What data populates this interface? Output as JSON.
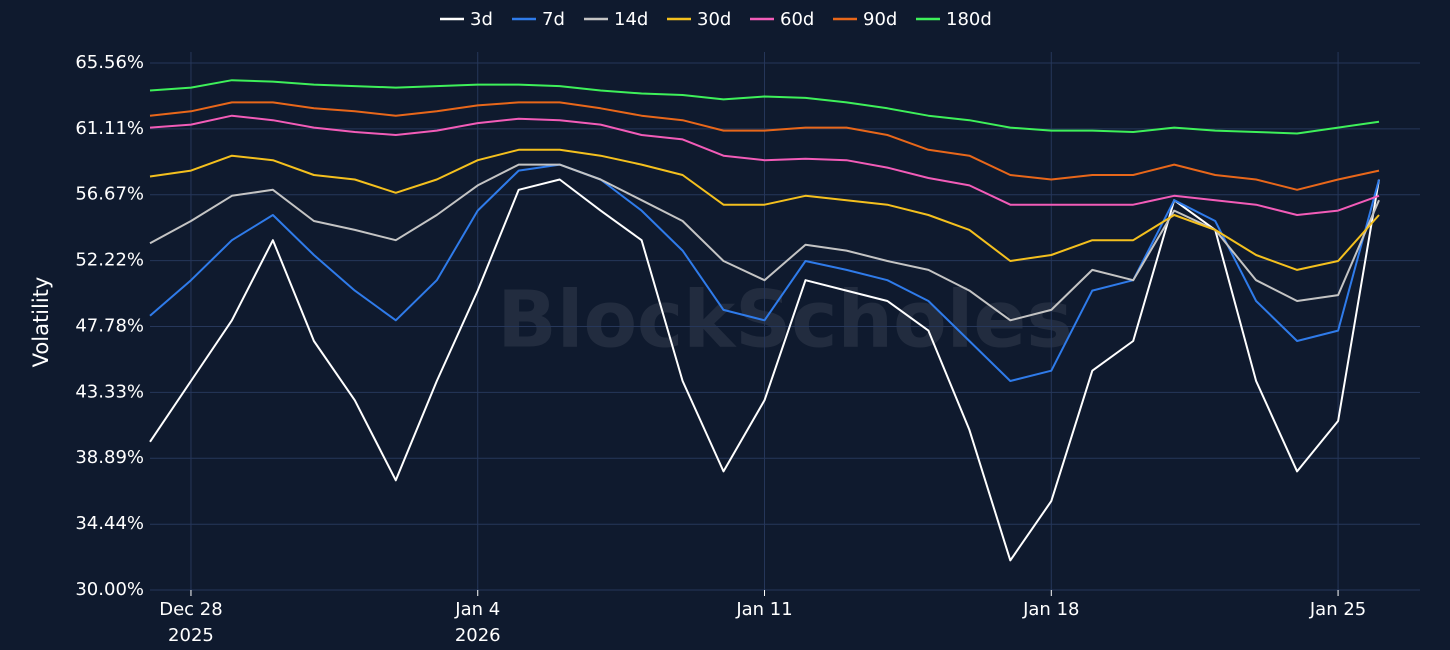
{
  "chart_data": {
    "type": "line",
    "y_label": "Volatility",
    "watermark": "BlockScholes",
    "legend": "top",
    "grid": true,
    "x": [
      "2025-12-27",
      "2025-12-28",
      "2025-12-29",
      "2025-12-30",
      "2025-12-31",
      "2026-01-01",
      "2026-01-02",
      "2026-01-03",
      "2026-01-04",
      "2026-01-05",
      "2026-01-06",
      "2026-01-07",
      "2026-01-08",
      "2026-01-09",
      "2026-01-10",
      "2026-01-11",
      "2026-01-12",
      "2026-01-13",
      "2026-01-14",
      "2026-01-15",
      "2026-01-16",
      "2026-01-17",
      "2026-01-18",
      "2026-01-19",
      "2026-01-20",
      "2026-01-21",
      "2026-01-22",
      "2026-01-23",
      "2026-01-24",
      "2026-01-25",
      "2026-01-26"
    ],
    "xlim": [
      "2025-12-27",
      "2026-01-27"
    ],
    "xticks": [
      {
        "value": "2025-12-28",
        "label": "Dec 28\n2025"
      },
      {
        "value": "2026-01-04",
        "label": "Jan 4\n2026"
      },
      {
        "value": "2026-01-11",
        "label": "Jan 11"
      },
      {
        "value": "2026-01-18",
        "label": "Jan 18"
      },
      {
        "value": "2026-01-25",
        "label": "Jan 25"
      }
    ],
    "ylim": [
      30,
      66.3
    ],
    "yticks": [
      {
        "value": 30,
        "label": "30.00%"
      },
      {
        "value": 34.44,
        "label": "34.44%"
      },
      {
        "value": 38.89,
        "label": "38.89%"
      },
      {
        "value": 43.33,
        "label": "43.33%"
      },
      {
        "value": 47.78,
        "label": "47.78%"
      },
      {
        "value": 52.22,
        "label": "52.22%"
      },
      {
        "value": 56.67,
        "label": "56.67%"
      },
      {
        "value": 61.11,
        "label": "61.11%"
      },
      {
        "value": 65.56,
        "label": "65.56%"
      }
    ],
    "series": [
      {
        "name": "3d",
        "color": "#ffffff",
        "values": [
          40,
          44.1,
          48.2,
          53.6,
          46.8,
          42.8,
          37.4,
          44.1,
          50.2,
          57,
          57.7,
          55.6,
          53.6,
          44.1,
          38,
          42.8,
          50.9,
          50.2,
          49.5,
          47.5,
          40.8,
          32,
          36,
          44.8,
          46.8,
          56.3,
          54.3,
          44.1,
          38,
          41.4,
          57.7
        ]
      },
      {
        "name": "7d",
        "color": "#2f7bea",
        "values": [
          48.5,
          50.9,
          53.6,
          55.3,
          52.6,
          50.2,
          48.2,
          50.9,
          55.6,
          58.3,
          58.7,
          57.7,
          55.6,
          52.9,
          48.9,
          48.2,
          52.2,
          51.6,
          50.9,
          49.5,
          46.8,
          44.1,
          44.8,
          50.2,
          50.9,
          56.3,
          54.9,
          49.5,
          46.8,
          47.5,
          57.7
        ]
      },
      {
        "name": "14d",
        "color": "#c4c4c4",
        "values": [
          53.4,
          54.9,
          56.6,
          57,
          54.9,
          54.3,
          53.6,
          55.3,
          57.3,
          58.7,
          58.7,
          57.7,
          56.3,
          54.9,
          52.2,
          50.9,
          53.3,
          52.9,
          52.2,
          51.6,
          50.2,
          48.2,
          48.9,
          51.6,
          50.9,
          55.6,
          54.3,
          50.9,
          49.5,
          49.9,
          56.3
        ]
      },
      {
        "name": "30d",
        "color": "#f4c01e",
        "values": [
          57.9,
          58.3,
          59.3,
          59,
          58,
          57.7,
          56.8,
          57.7,
          59,
          59.7,
          59.7,
          59.3,
          58.7,
          58,
          56,
          56,
          56.6,
          56.3,
          56,
          55.3,
          54.3,
          52.2,
          52.6,
          53.6,
          53.6,
          55.3,
          54.3,
          52.6,
          51.6,
          52.2,
          55.3
        ]
      },
      {
        "name": "60d",
        "color": "#f25cb8",
        "values": [
          61.2,
          61.4,
          62,
          61.7,
          61.2,
          60.9,
          60.7,
          61,
          61.5,
          61.8,
          61.7,
          61.4,
          60.7,
          60.4,
          59.3,
          59,
          59.1,
          59,
          58.5,
          57.8,
          57.3,
          56,
          56,
          56,
          56,
          56.6,
          56.3,
          56,
          55.3,
          55.6,
          56.6
        ]
      },
      {
        "name": "90d",
        "color": "#e8671a",
        "values": [
          62,
          62.3,
          62.9,
          62.9,
          62.5,
          62.3,
          62,
          62.3,
          62.7,
          62.9,
          62.9,
          62.5,
          62,
          61.7,
          61,
          61,
          61.2,
          61.2,
          60.7,
          59.7,
          59.3,
          58,
          57.7,
          58,
          58,
          58.7,
          58,
          57.7,
          57,
          57.7,
          58.3
        ]
      },
      {
        "name": "180d",
        "color": "#3ef05a",
        "values": [
          63.7,
          63.9,
          64.4,
          64.3,
          64.1,
          64,
          63.9,
          64,
          64.1,
          64.1,
          64,
          63.7,
          63.5,
          63.4,
          63.1,
          63.3,
          63.2,
          62.9,
          62.5,
          62,
          61.7,
          61.2,
          61,
          61,
          60.9,
          61.2,
          61,
          60.9,
          60.8,
          61.2,
          61.6
        ]
      }
    ]
  }
}
